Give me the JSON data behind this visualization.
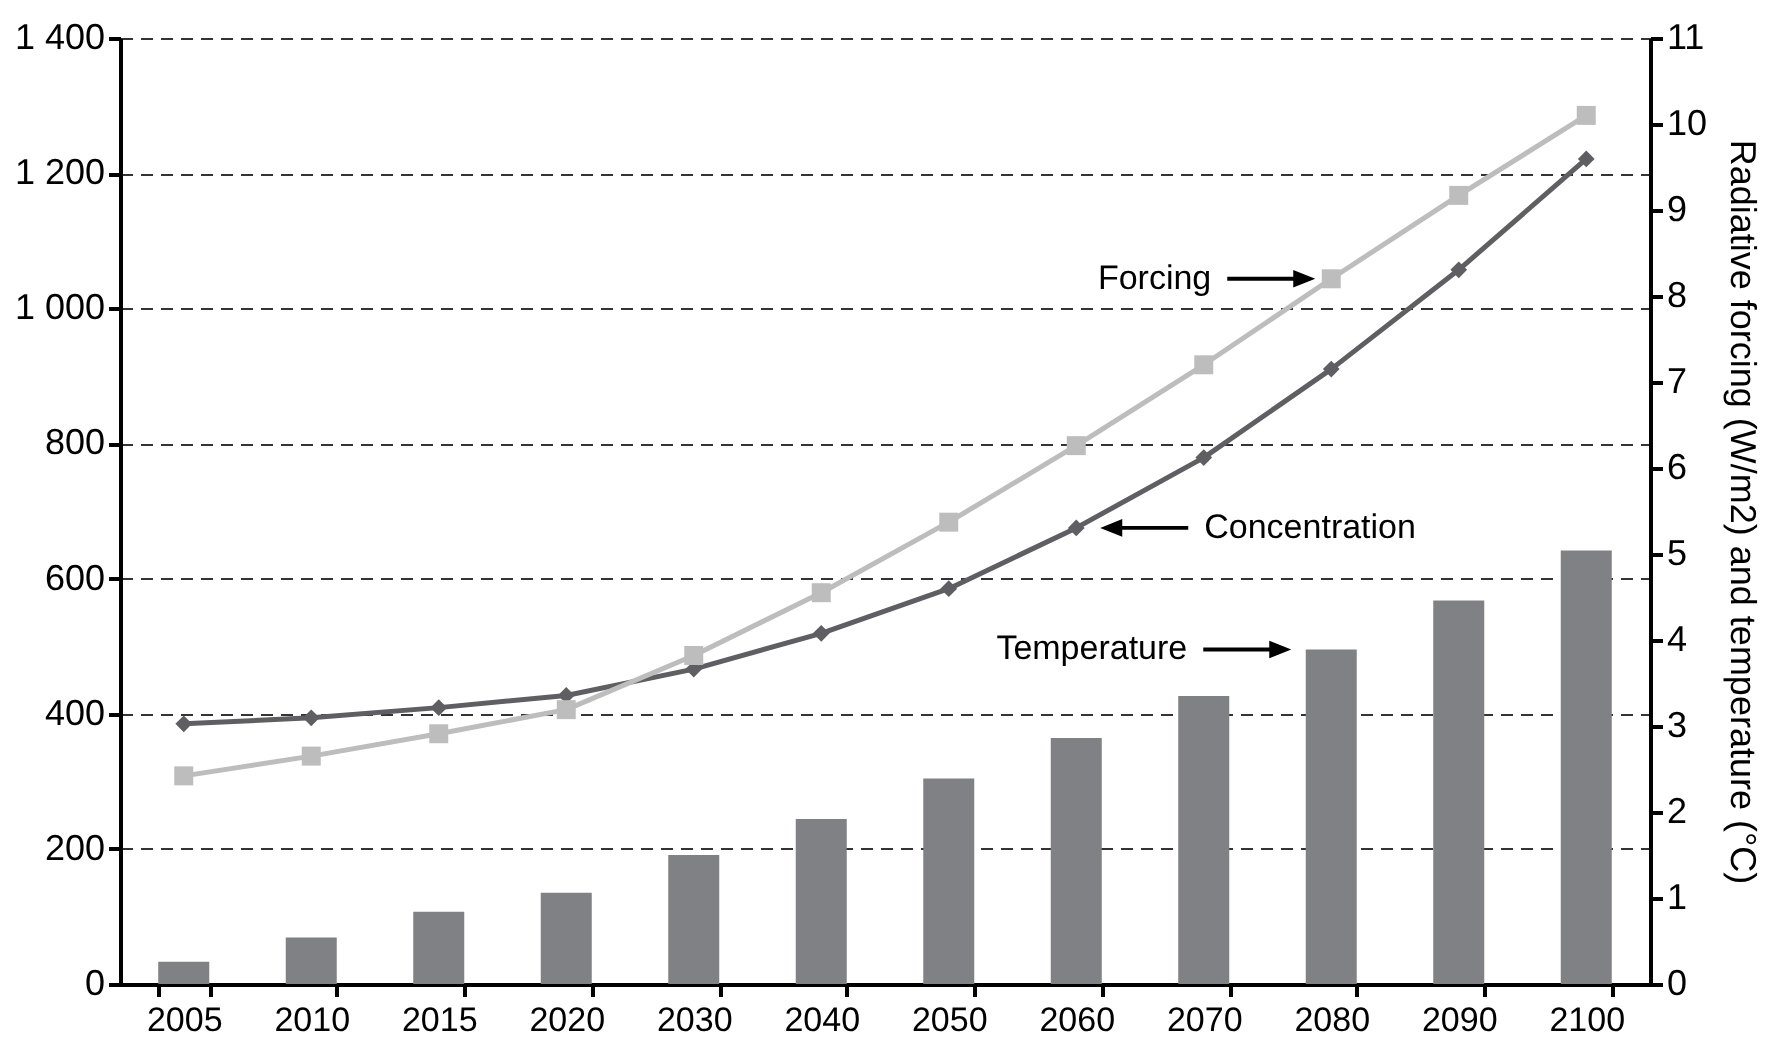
{
  "chart_data": {
    "type": "line",
    "categories": [
      "2005",
      "2010",
      "2015",
      "2020",
      "2030",
      "2040",
      "2050",
      "2060",
      "2070",
      "2080",
      "2090",
      "2100"
    ],
    "series": [
      {
        "name": "Temperature",
        "type": "bar",
        "axis": "y2",
        "color": "#808184",
        "values": [
          0.26,
          0.54,
          0.84,
          1.06,
          1.5,
          1.92,
          2.39,
          2.86,
          3.35,
          3.89,
          4.46,
          5.04
        ]
      },
      {
        "name": "Concentration",
        "color": "#5f5f63",
        "marker": "diamond",
        "values": [
          385,
          394,
          409,
          427,
          466,
          519,
          585,
          675,
          779,
          910,
          1057,
          1221
        ]
      },
      {
        "name": "Forcing",
        "axis": "y2",
        "color": "#bdbdbd",
        "marker": "square",
        "values": [
          2.42,
          2.65,
          2.91,
          3.19,
          3.82,
          4.55,
          5.37,
          6.26,
          7.2,
          8.2,
          9.17,
          10.1
        ]
      }
    ],
    "ylim": [
      0,
      1400
    ],
    "yticks": [
      {
        "value": 0,
        "label": "0"
      },
      {
        "value": 200,
        "label": "200"
      },
      {
        "value": 400,
        "label": "400"
      },
      {
        "value": 600,
        "label": "600"
      },
      {
        "value": 800,
        "label": "800"
      },
      {
        "value": 1000,
        "label": "1 000"
      },
      {
        "value": 1200,
        "label": "1 200"
      },
      {
        "value": 1400,
        "label": "1 400"
      }
    ],
    "y2lim": [
      0,
      11
    ],
    "y2ticks": [
      0,
      1,
      2,
      3,
      4,
      5,
      6,
      7,
      8,
      9,
      10,
      11
    ],
    "y2label": "Radiative forcing (W/m2) and temperature (°C)",
    "grid": "y",
    "line_style": "solid"
  }
}
